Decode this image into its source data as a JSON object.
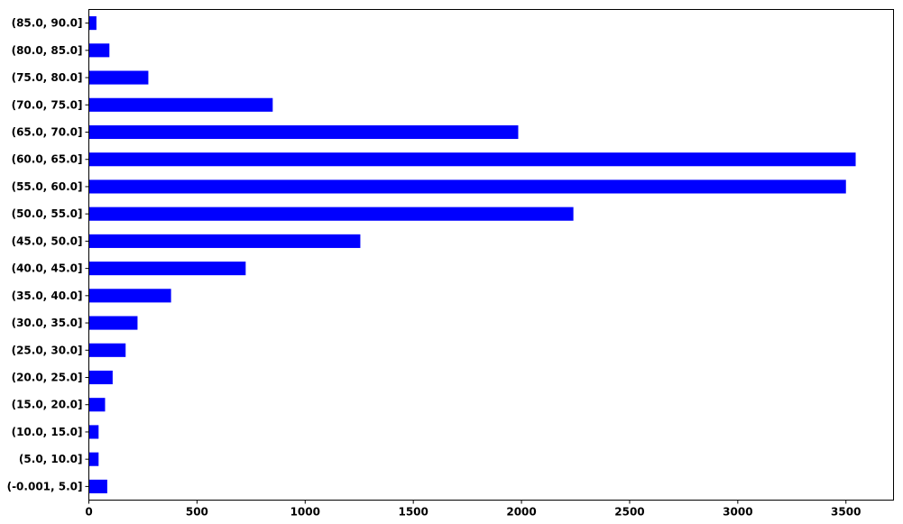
{
  "chart_data": {
    "type": "bar",
    "orientation": "horizontal",
    "title": "",
    "xlabel": "",
    "ylabel": "",
    "xlim": [
      0,
      3720
    ],
    "x_ticks": [
      0,
      500,
      1000,
      1500,
      2000,
      2500,
      3000,
      3500
    ],
    "grid": false,
    "bar_color": "#0000ff",
    "categories": [
      "(-0.001, 5.0]",
      "(5.0, 10.0]",
      "(10.0, 15.0]",
      "(15.0, 20.0]",
      "(20.0, 25.0]",
      "(25.0, 30.0]",
      "(30.0, 35.0]",
      "(35.0, 40.0]",
      "(40.0, 45.0]",
      "(45.0, 50.0]",
      "(50.0, 55.0]",
      "(55.0, 60.0]",
      "(60.0, 65.0]",
      "(65.0, 70.0]",
      "(70.0, 75.0]",
      "(75.0, 80.0]",
      "(80.0, 85.0]",
      "(85.0, 90.0]"
    ],
    "values": [
      85,
      45,
      45,
      75,
      110,
      170,
      225,
      380,
      725,
      1255,
      2240,
      3500,
      3545,
      1985,
      850,
      275,
      95,
      35
    ]
  }
}
